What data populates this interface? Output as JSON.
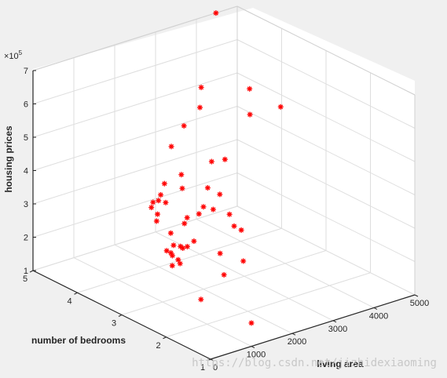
{
  "chart_data": {
    "type": "scatter",
    "title": "",
    "xlabel": "living area",
    "ylabel": "number of bedrooms",
    "zlabel": "housing prices",
    "z_exponent_label": "×10",
    "z_exponent_power": "5",
    "xlim": [
      0,
      5000
    ],
    "ylim": [
      1,
      5
    ],
    "zlim": [
      100000,
      700000
    ],
    "x_ticks": [
      0,
      1000,
      2000,
      3000,
      4000,
      5000
    ],
    "y_ticks": [
      1,
      2,
      3,
      4,
      5
    ],
    "z_ticks": [
      1,
      2,
      3,
      4,
      5,
      6,
      7
    ],
    "grid": true,
    "marker": "*",
    "marker_color": "#ff0000",
    "watermark": "https://blog.csdn.net/jizhidexiaoming",
    "points": [
      [
        2104,
        3,
        399900
      ],
      [
        1600,
        3,
        329900
      ],
      [
        2400,
        3,
        369000
      ],
      [
        1416,
        2,
        232000
      ],
      [
        3000,
        4,
        539900
      ],
      [
        1985,
        4,
        299900
      ],
      [
        1534,
        3,
        314900
      ],
      [
        1427,
        3,
        198999
      ],
      [
        1380,
        3,
        212000
      ],
      [
        1494,
        3,
        242500
      ],
      [
        1940,
        4,
        239999
      ],
      [
        2000,
        3,
        347000
      ],
      [
        1890,
        3,
        329999
      ],
      [
        4478,
        5,
        699900
      ],
      [
        1268,
        3,
        259900
      ],
      [
        2300,
        4,
        449900
      ],
      [
        1320,
        2,
        299900
      ],
      [
        1236,
        3,
        199900
      ],
      [
        2609,
        4,
        499998
      ],
      [
        3031,
        4,
        599000
      ],
      [
        1767,
        3,
        252900
      ],
      [
        1888,
        2,
        255000
      ],
      [
        1604,
        3,
        242900
      ],
      [
        1962,
        4,
        259900
      ],
      [
        3890,
        3,
        573900
      ],
      [
        1100,
        3,
        249900
      ],
      [
        1458,
        3,
        464500
      ],
      [
        2526,
        3,
        469000
      ],
      [
        2200,
        3,
        475000
      ],
      [
        2637,
        3,
        299900
      ],
      [
        1839,
        2,
        349900
      ],
      [
        1000,
        1,
        169900
      ],
      [
        2040,
        4,
        314900
      ],
      [
        3137,
        3,
        579900
      ],
      [
        1811,
        4,
        285900
      ],
      [
        1437,
        3,
        249900
      ],
      [
        1239,
        3,
        229900
      ],
      [
        2132,
        4,
        345000
      ],
      [
        4215,
        4,
        549000
      ],
      [
        2162,
        4,
        287000
      ],
      [
        1664,
        2,
        368500
      ],
      [
        2238,
        3,
        329900
      ],
      [
        2567,
        4,
        314000
      ],
      [
        1200,
        3,
        299000
      ],
      [
        852,
        2,
        179900
      ],
      [
        1852,
        4,
        299900
      ],
      [
        1203,
        3,
        239500
      ]
    ]
  }
}
